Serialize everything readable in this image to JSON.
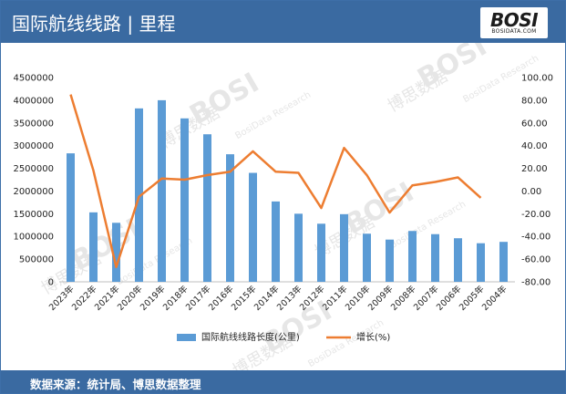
{
  "header": {
    "title": "国际航线线路 | 里程",
    "logo_main": "BOSI",
    "logo_sub": "BOSIDATA.COM"
  },
  "footer": {
    "source": "数据来源：统计局、博思数据整理"
  },
  "watermark": {
    "brand": "BOSI",
    "cn": "博思数据",
    "en": "BosiData Research"
  },
  "colors": {
    "header_bg": "#3a6aa1",
    "bar": "#5b9bd5",
    "line": "#ed7d31"
  },
  "chart_data": {
    "type": "bar+line",
    "categories": [
      "2023年",
      "2022年",
      "2021年",
      "2020年",
      "2019年",
      "2018年",
      "2017年",
      "2016年",
      "2015年",
      "2014年",
      "2013年",
      "2012年",
      "2011年",
      "2010年",
      "2009年",
      "2008年",
      "2007年",
      "2006年",
      "2005年",
      "2004年"
    ],
    "series": [
      {
        "name": "国际航线线路长度(公里)",
        "type": "bar",
        "axis": "left",
        "values": [
          2830000,
          1530000,
          1300000,
          3820000,
          4000000,
          3600000,
          3250000,
          2810000,
          2400000,
          1770000,
          1500000,
          1280000,
          1490000,
          1060000,
          930000,
          1120000,
          1050000,
          960000,
          850000,
          880000
        ]
      },
      {
        "name": "增长(%)",
        "type": "line",
        "axis": "right",
        "values": [
          85,
          18,
          -67,
          -5,
          11,
          10,
          14,
          17,
          35,
          17,
          16,
          -15,
          38,
          14,
          -19,
          5,
          8,
          12,
          -6,
          null
        ]
      }
    ],
    "left_axis": {
      "min": 0,
      "max": 4500000,
      "step": 500000,
      "ticks": [
        "0",
        "500000",
        "1000000",
        "1500000",
        "2000000",
        "2500000",
        "3000000",
        "3500000",
        "4000000",
        "4500000"
      ]
    },
    "right_axis": {
      "min": -80,
      "max": 100,
      "step": 20,
      "ticks": [
        "-80.00",
        "-60.00",
        "-40.00",
        "-20.00",
        "0.00",
        "20.00",
        "40.00",
        "60.00",
        "80.00",
        "100.00"
      ]
    },
    "legend_position": "bottom",
    "grid": false
  }
}
